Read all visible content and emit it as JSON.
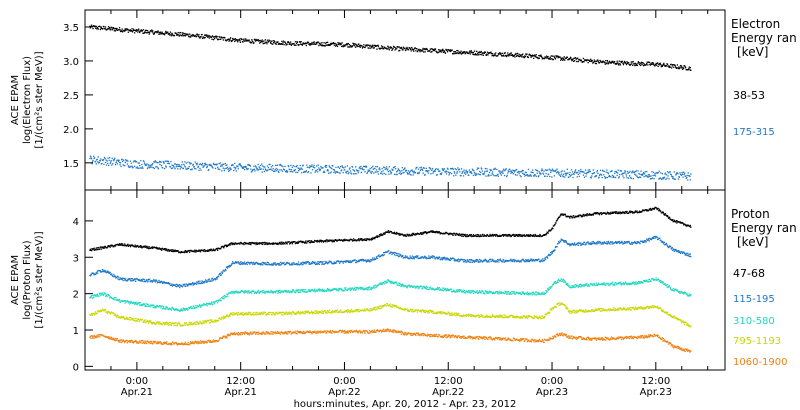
{
  "chart_data": {
    "type": "scatter",
    "x_label": "hours:minutes, Apr. 20, 2012 - Apr. 23, 2012",
    "x_range_hours": [
      18,
      92
    ],
    "x_ticks": [
      {
        "hour": 24,
        "time": "0:00",
        "date": "Apr.21"
      },
      {
        "hour": 36,
        "time": "12:00",
        "date": "Apr.21"
      },
      {
        "hour": 48,
        "time": "0:00",
        "date": "Apr.22"
      },
      {
        "hour": 60,
        "time": "12:00",
        "date": "Apr.22"
      },
      {
        "hour": 72,
        "time": "0:00",
        "date": "Apr.23"
      },
      {
        "hour": 84,
        "time": "12:00",
        "date": "Apr.23"
      }
    ],
    "panels": [
      {
        "ylabel_lines": [
          "ACE EPAM",
          "log(Electron Flux)",
          "[1/(cm²s ster MeV)]"
        ],
        "ylim": [
          1.1,
          3.75
        ],
        "yticks": [
          1.5,
          2.0,
          2.5,
          3.0,
          3.5
        ],
        "ytick_labels": [
          "1.5",
          "2.0",
          "2.5",
          "3.0",
          "3.5"
        ],
        "legend_title": [
          "Electron",
          "Energy ran",
          "[keV]"
        ],
        "series": [
          {
            "name": "38-53",
            "color": "#000000",
            "noise": 0.03,
            "points": [
              [
                18.5,
                3.5
              ],
              [
                24,
                3.44
              ],
              [
                30,
                3.38
              ],
              [
                36,
                3.3
              ],
              [
                42,
                3.26
              ],
              [
                48,
                3.24
              ],
              [
                54,
                3.18
              ],
              [
                60,
                3.14
              ],
              [
                66,
                3.1
              ],
              [
                72,
                3.05
              ],
              [
                78,
                2.98
              ],
              [
                84,
                2.95
              ],
              [
                88,
                2.89
              ]
            ]
          },
          {
            "name": "175-315",
            "color": "#1f78c8",
            "noise": 0.06,
            "points": [
              [
                18.5,
                1.55
              ],
              [
                24,
                1.48
              ],
              [
                36,
                1.43
              ],
              [
                48,
                1.4
              ],
              [
                60,
                1.37
              ],
              [
                72,
                1.35
              ],
              [
                84,
                1.32
              ],
              [
                88,
                1.3
              ]
            ]
          }
        ]
      },
      {
        "ylabel_lines": [
          "ACE EPAM",
          "log(Proton Flux)",
          "[1/(cm²s ster MeV)]"
        ],
        "ylim": [
          -0.1,
          4.85
        ],
        "yticks": [
          0,
          1,
          2,
          3,
          4
        ],
        "ytick_labels": [
          "0",
          "1",
          "2",
          "3",
          "4"
        ],
        "legend_title": [
          "Proton",
          "Energy ran",
          "[keV]"
        ],
        "series": [
          {
            "name": "47-68",
            "color": "#000000",
            "noise": 0.03,
            "points": [
              [
                18.5,
                3.2
              ],
              [
                22,
                3.35
              ],
              [
                26,
                3.25
              ],
              [
                29,
                3.15
              ],
              [
                33,
                3.2
              ],
              [
                35,
                3.38
              ],
              [
                40,
                3.38
              ],
              [
                46,
                3.45
              ],
              [
                51,
                3.5
              ],
              [
                53,
                3.7
              ],
              [
                55,
                3.6
              ],
              [
                58,
                3.7
              ],
              [
                62,
                3.6
              ],
              [
                71,
                3.6
              ],
              [
                72,
                3.8
              ],
              [
                73,
                4.2
              ],
              [
                74,
                4.1
              ],
              [
                77,
                4.2
              ],
              [
                82,
                4.25
              ],
              [
                84,
                4.35
              ],
              [
                86,
                4.0
              ],
              [
                88,
                3.85
              ]
            ]
          },
          {
            "name": "115-195",
            "color": "#1f78c8",
            "noise": 0.04,
            "points": [
              [
                18.5,
                2.5
              ],
              [
                20,
                2.65
              ],
              [
                22,
                2.4
              ],
              [
                26,
                2.35
              ],
              [
                29,
                2.2
              ],
              [
                33,
                2.4
              ],
              [
                35,
                2.85
              ],
              [
                40,
                2.82
              ],
              [
                46,
                2.85
              ],
              [
                51,
                2.92
              ],
              [
                53,
                3.15
              ],
              [
                55,
                3.0
              ],
              [
                58,
                3.0
              ],
              [
                62,
                2.9
              ],
              [
                71,
                2.92
              ],
              [
                72,
                3.15
              ],
              [
                73,
                3.5
              ],
              [
                74,
                3.35
              ],
              [
                77,
                3.4
              ],
              [
                82,
                3.4
              ],
              [
                84,
                3.55
              ],
              [
                86,
                3.2
              ],
              [
                88,
                3.05
              ]
            ]
          },
          {
            "name": "310-580",
            "color": "#20d8c0",
            "noise": 0.04,
            "points": [
              [
                18.5,
                1.9
              ],
              [
                20,
                2.0
              ],
              [
                22,
                1.8
              ],
              [
                26,
                1.65
              ],
              [
                29,
                1.55
              ],
              [
                33,
                1.75
              ],
              [
                35,
                2.05
              ],
              [
                40,
                2.05
              ],
              [
                46,
                2.1
              ],
              [
                51,
                2.15
              ],
              [
                53,
                2.35
              ],
              [
                55,
                2.2
              ],
              [
                58,
                2.15
              ],
              [
                62,
                2.05
              ],
              [
                71,
                2.0
              ],
              [
                72,
                2.25
              ],
              [
                73,
                2.4
              ],
              [
                74,
                2.2
              ],
              [
                77,
                2.25
              ],
              [
                82,
                2.3
              ],
              [
                84,
                2.4
              ],
              [
                86,
                2.1
              ],
              [
                88,
                1.95
              ]
            ]
          },
          {
            "name": "795-1193",
            "color": "#c8d800",
            "noise": 0.04,
            "points": [
              [
                18.5,
                1.4
              ],
              [
                20,
                1.55
              ],
              [
                22,
                1.35
              ],
              [
                26,
                1.2
              ],
              [
                29,
                1.15
              ],
              [
                33,
                1.25
              ],
              [
                35,
                1.45
              ],
              [
                40,
                1.45
              ],
              [
                46,
                1.5
              ],
              [
                51,
                1.55
              ],
              [
                53,
                1.7
              ],
              [
                55,
                1.55
              ],
              [
                58,
                1.5
              ],
              [
                62,
                1.4
              ],
              [
                71,
                1.35
              ],
              [
                72,
                1.6
              ],
              [
                73,
                1.75
              ],
              [
                74,
                1.5
              ],
              [
                77,
                1.55
              ],
              [
                82,
                1.6
              ],
              [
                84,
                1.65
              ],
              [
                86,
                1.35
              ],
              [
                88,
                1.1
              ]
            ]
          },
          {
            "name": "1060-1900",
            "color": "#f08010",
            "noise": 0.04,
            "points": [
              [
                18.5,
                0.8
              ],
              [
                20,
                0.85
              ],
              [
                22,
                0.7
              ],
              [
                26,
                0.65
              ],
              [
                29,
                0.62
              ],
              [
                33,
                0.7
              ],
              [
                35,
                0.9
              ],
              [
                40,
                0.92
              ],
              [
                46,
                0.95
              ],
              [
                51,
                0.95
              ],
              [
                53,
                1.0
              ],
              [
                55,
                0.9
              ],
              [
                58,
                0.85
              ],
              [
                62,
                0.8
              ],
              [
                71,
                0.7
              ],
              [
                72,
                0.8
              ],
              [
                73,
                0.9
              ],
              [
                74,
                0.8
              ],
              [
                77,
                0.75
              ],
              [
                82,
                0.8
              ],
              [
                84,
                0.85
              ],
              [
                86,
                0.55
              ],
              [
                88,
                0.4
              ]
            ]
          }
        ]
      }
    ]
  }
}
